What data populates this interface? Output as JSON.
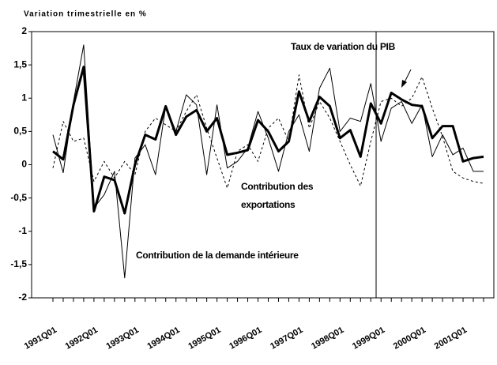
{
  "chart_data": {
    "type": "line",
    "y_axis_label": "Variation trimestrielle en %",
    "categories": [
      "1991Q01",
      null,
      null,
      null,
      "1992Q01",
      null,
      null,
      null,
      "1993Q01",
      null,
      null,
      null,
      "1994Q01",
      null,
      null,
      null,
      "1995Q01",
      null,
      null,
      null,
      "1996Q01",
      null,
      null,
      null,
      "1997Q01",
      null,
      null,
      null,
      "1998Q01",
      null,
      null,
      null,
      "1999Q01",
      null,
      null,
      null,
      "2000Q01",
      null,
      null,
      null,
      "2001Q01",
      null,
      null
    ],
    "series": [
      {
        "name": "Taux de variation du PIB",
        "color": "#000000",
        "style": "bold",
        "values": [
          0.2,
          0.08,
          0.9,
          1.47,
          -0.7,
          -0.18,
          -0.23,
          -0.73,
          0.0,
          0.45,
          0.38,
          0.88,
          0.45,
          0.72,
          0.82,
          0.5,
          0.7,
          0.15,
          0.18,
          0.22,
          0.67,
          0.5,
          0.2,
          0.35,
          1.1,
          0.65,
          1.02,
          0.88,
          0.4,
          0.52,
          0.12,
          0.92,
          0.62,
          1.08,
          0.98,
          0.9,
          0.88,
          0.4,
          0.58,
          0.58,
          0.05,
          0.1,
          0.12
        ]
      },
      {
        "name": "Contribution de la demande intérieure",
        "color": "#000000",
        "style": "thin",
        "values": [
          0.45,
          -0.12,
          0.95,
          1.8,
          -0.65,
          -0.45,
          -0.1,
          -1.7,
          0.1,
          0.3,
          -0.15,
          0.88,
          0.5,
          1.05,
          0.9,
          -0.15,
          0.9,
          -0.05,
          0.05,
          0.25,
          0.8,
          0.4,
          -0.1,
          0.5,
          0.75,
          0.2,
          1.15,
          1.45,
          0.5,
          0.7,
          0.65,
          1.22,
          0.35,
          0.85,
          0.95,
          0.62,
          0.9,
          0.12,
          0.45,
          0.15,
          0.25,
          -0.1,
          -0.1
        ]
      },
      {
        "name": "Contribution des exportations",
        "color": "#000000",
        "style": "dashed",
        "values": [
          -0.05,
          0.65,
          0.35,
          0.4,
          -0.25,
          0.05,
          -0.2,
          0.05,
          -0.15,
          0.5,
          0.7,
          0.6,
          0.5,
          0.8,
          1.05,
          0.55,
          0.1,
          -0.35,
          0.2,
          0.3,
          0.05,
          0.55,
          0.7,
          0.35,
          1.35,
          0.55,
          0.95,
          0.7,
          0.35,
          0.0,
          -0.32,
          0.35,
          0.95,
          1.0,
          0.88,
          1.0,
          1.32,
          0.85,
          0.42,
          -0.1,
          -0.2,
          -0.25,
          -0.28
        ]
      }
    ],
    "ylim": [
      -2,
      2
    ],
    "yticks": [
      -2,
      {
        "value": -1.5,
        "label": "-1,5"
      },
      -1,
      {
        "value": -0.5,
        "label": "-0,5"
      },
      0,
      {
        "value": 0.5,
        "label": "0,5"
      },
      1,
      {
        "value": 1.5,
        "label": "1,5"
      },
      2
    ],
    "grid": false
  }
}
